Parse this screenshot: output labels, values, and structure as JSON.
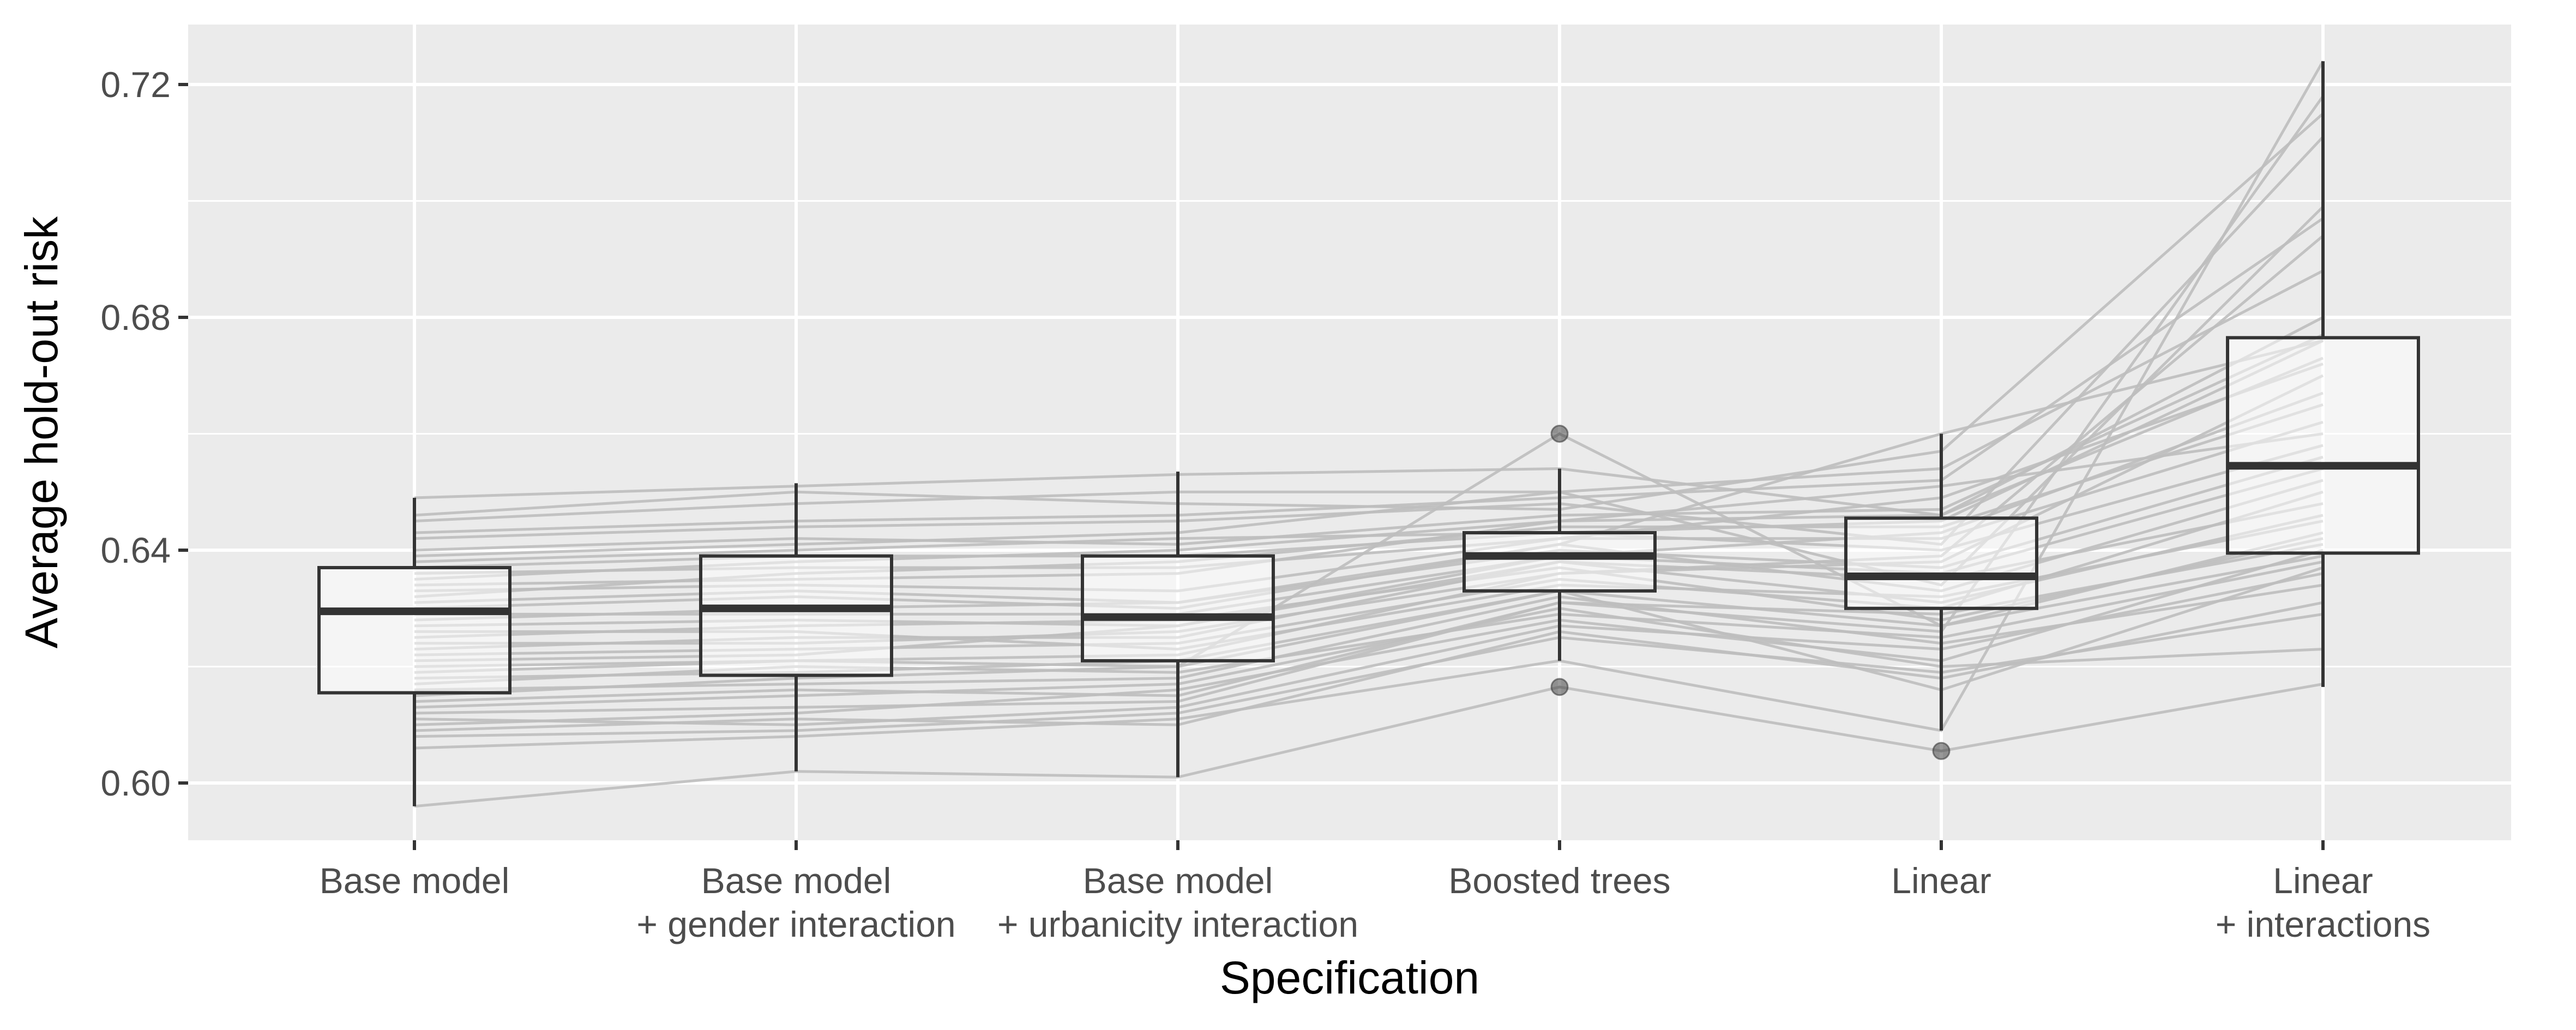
{
  "chart_data": {
    "type": "boxplot",
    "xlabel": "Specification",
    "ylabel": "Average hold-out risk",
    "ylim": [
      0.59,
      0.73
    ],
    "yticks": [
      "0.60",
      "0.64",
      "0.68",
      "0.72"
    ],
    "categories": [
      [
        "Base model"
      ],
      [
        "Base model",
        "+ gender interaction"
      ],
      [
        "Base model",
        "+ urbanicity interaction"
      ],
      [
        "Boosted trees"
      ],
      [
        "Linear"
      ],
      [
        "Linear",
        "+ interactions"
      ]
    ],
    "boxes": [
      {
        "min": 0.596,
        "q1": 0.6155,
        "median": 0.6295,
        "q3": 0.637,
        "max": 0.649,
        "outliers": []
      },
      {
        "min": 0.602,
        "q1": 0.6185,
        "median": 0.63,
        "q3": 0.639,
        "max": 0.6515,
        "outliers": []
      },
      {
        "min": 0.601,
        "q1": 0.621,
        "median": 0.6285,
        "q3": 0.639,
        "max": 0.6535,
        "outliers": []
      },
      {
        "min": 0.621,
        "q1": 0.633,
        "median": 0.639,
        "q3": 0.643,
        "max": 0.654,
        "outliers": [
          0.66,
          0.6165
        ]
      },
      {
        "min": 0.609,
        "q1": 0.63,
        "median": 0.6355,
        "q3": 0.6455,
        "max": 0.66,
        "outliers": [
          0.6055
        ]
      },
      {
        "min": 0.6165,
        "q1": 0.6395,
        "median": 0.6545,
        "q3": 0.6765,
        "max": 0.724,
        "outliers": []
      }
    ],
    "paired_lines": [
      [
        0.596,
        0.602,
        0.601,
        0.6165,
        0.6055,
        0.617
      ],
      [
        0.649,
        0.651,
        0.653,
        0.654,
        0.646,
        0.68
      ],
      [
        0.606,
        0.608,
        0.611,
        0.621,
        0.609,
        0.724
      ],
      [
        0.631,
        0.633,
        0.631,
        0.641,
        0.66,
        0.676
      ],
      [
        0.615,
        0.618,
        0.62,
        0.66,
        0.627,
        0.643
      ],
      [
        0.629,
        0.629,
        0.629,
        0.639,
        0.636,
        0.654
      ],
      [
        0.637,
        0.639,
        0.639,
        0.643,
        0.645,
        0.676
      ],
      [
        0.645,
        0.648,
        0.65,
        0.65,
        0.634,
        0.699
      ],
      [
        0.612,
        0.613,
        0.614,
        0.631,
        0.626,
        0.718
      ],
      [
        0.642,
        0.644,
        0.645,
        0.648,
        0.641,
        0.711
      ],
      [
        0.62,
        0.621,
        0.622,
        0.636,
        0.639,
        0.694
      ],
      [
        0.627,
        0.628,
        0.627,
        0.639,
        0.643,
        0.667
      ],
      [
        0.61,
        0.612,
        0.616,
        0.628,
        0.621,
        0.64
      ],
      [
        0.634,
        0.635,
        0.636,
        0.645,
        0.651,
        0.66
      ],
      [
        0.618,
        0.619,
        0.621,
        0.633,
        0.616,
        0.637
      ],
      [
        0.639,
        0.641,
        0.643,
        0.65,
        0.654,
        0.688
      ],
      [
        0.623,
        0.625,
        0.625,
        0.638,
        0.631,
        0.646
      ],
      [
        0.608,
        0.609,
        0.612,
        0.625,
        0.619,
        0.629
      ],
      [
        0.633,
        0.634,
        0.633,
        0.642,
        0.649,
        0.672
      ],
      [
        0.625,
        0.627,
        0.628,
        0.637,
        0.628,
        0.642
      ],
      [
        0.646,
        0.65,
        0.648,
        0.647,
        0.657,
        0.715
      ],
      [
        0.616,
        0.617,
        0.618,
        0.632,
        0.624,
        0.634
      ],
      [
        0.64,
        0.642,
        0.641,
        0.646,
        0.647,
        0.677
      ],
      [
        0.622,
        0.623,
        0.624,
        0.635,
        0.63,
        0.65
      ],
      [
        0.613,
        0.615,
        0.617,
        0.63,
        0.62,
        0.623
      ],
      [
        0.636,
        0.637,
        0.637,
        0.642,
        0.642,
        0.662
      ],
      [
        0.628,
        0.63,
        0.631,
        0.64,
        0.637,
        0.656
      ],
      [
        0.619,
        0.621,
        0.62,
        0.633,
        0.627,
        0.639
      ],
      [
        0.643,
        0.645,
        0.646,
        0.649,
        0.652,
        0.697
      ],
      [
        0.611,
        0.61,
        0.613,
        0.627,
        0.623,
        0.636
      ],
      [
        0.63,
        0.632,
        0.63,
        0.641,
        0.633,
        0.652
      ],
      [
        0.624,
        0.624,
        0.626,
        0.636,
        0.638,
        0.67
      ],
      [
        0.614,
        0.616,
        0.615,
        0.631,
        0.629,
        0.641
      ],
      [
        0.638,
        0.64,
        0.642,
        0.643,
        0.64,
        0.658
      ],
      [
        0.626,
        0.626,
        0.623,
        0.634,
        0.632,
        0.645
      ],
      [
        0.617,
        0.62,
        0.619,
        0.629,
        0.625,
        0.638
      ],
      [
        0.632,
        0.636,
        0.638,
        0.644,
        0.644,
        0.665
      ],
      [
        0.621,
        0.622,
        0.627,
        0.638,
        0.635,
        0.648
      ],
      [
        0.609,
        0.611,
        0.61,
        0.626,
        0.618,
        0.631
      ],
      [
        0.635,
        0.638,
        0.64,
        0.645,
        0.646,
        0.673
      ]
    ]
  }
}
